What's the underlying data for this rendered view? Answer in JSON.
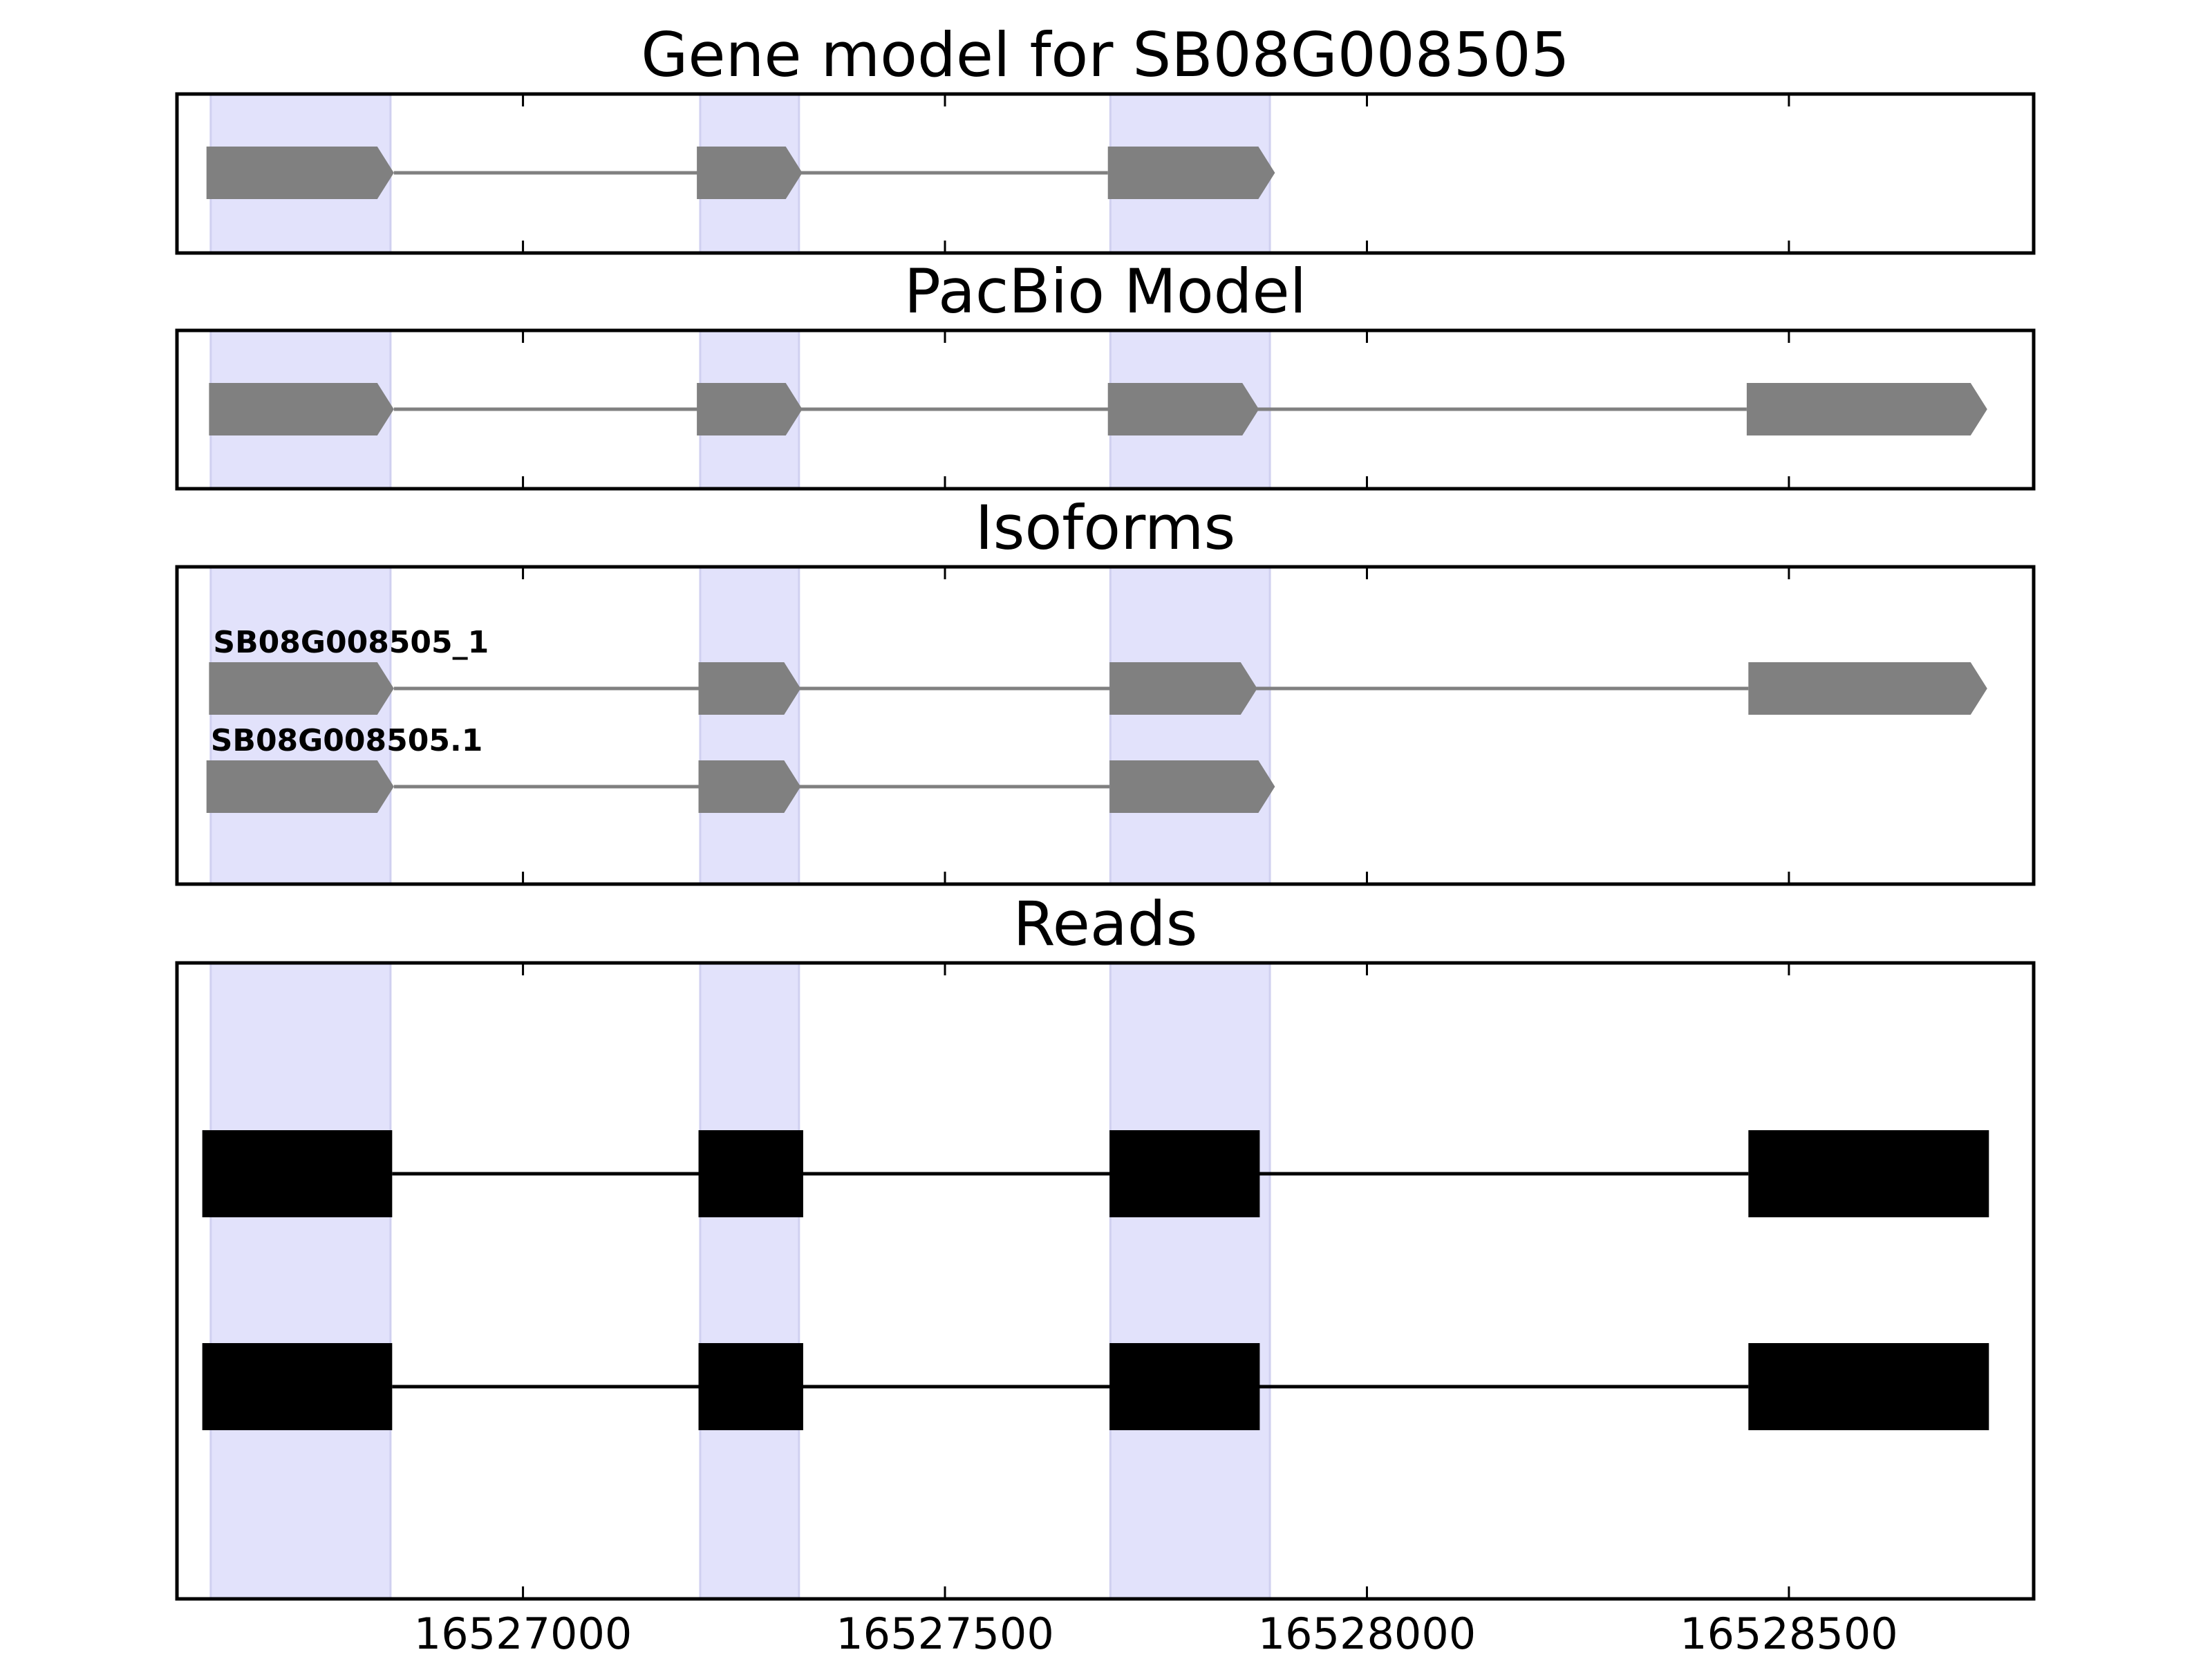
{
  "colors": {
    "shade": "#e2e2fb",
    "shade_edge": "#d0d0f0",
    "model": "#808080",
    "read": "#000000",
    "frame": "#000000"
  },
  "chart_data": {
    "type": "gene-structure",
    "x_axis": {
      "xlim": [
        16526590,
        16528790
      ],
      "ticks": [
        16527000,
        16527500,
        16528000,
        16528500
      ],
      "tick_labels": [
        "16527000",
        "16527500",
        "16528000",
        "16528500"
      ]
    },
    "shaded_exons": [
      [
        16526630,
        16526843
      ],
      [
        16527210,
        16527327
      ],
      [
        16527696,
        16527885
      ]
    ],
    "panels": [
      {
        "id": "gene-model",
        "title": "Gene model for SB08G008505",
        "style": "arrow",
        "rows": [
          {
            "label": "",
            "exons": [
              [
                16526625,
                16526847
              ],
              [
                16527206,
                16527331
              ],
              [
                16527693,
                16527891
              ]
            ]
          }
        ]
      },
      {
        "id": "pacbio-model",
        "title": "PacBio Model",
        "style": "arrow",
        "rows": [
          {
            "label": "",
            "exons": [
              [
                16526628,
                16526847
              ],
              [
                16527206,
                16527331
              ],
              [
                16527693,
                16527872
              ],
              [
                16528450,
                16528735
              ]
            ]
          }
        ]
      },
      {
        "id": "isoforms",
        "title": "Isoforms",
        "style": "arrow",
        "rows": [
          {
            "label": "SB08G008505_1",
            "exons": [
              [
                16526628,
                16526847
              ],
              [
                16527208,
                16527329
              ],
              [
                16527695,
                16527870
              ],
              [
                16528452,
                16528735
              ]
            ]
          },
          {
            "label": "SB08G008505.1",
            "exons": [
              [
                16526625,
                16526847
              ],
              [
                16527208,
                16527329
              ],
              [
                16527695,
                16527891
              ]
            ]
          }
        ]
      },
      {
        "id": "reads",
        "title": "Reads",
        "style": "block",
        "rows": [
          {
            "label": "",
            "exons": [
              [
                16526620,
                16526845
              ],
              [
                16527208,
                16527332
              ],
              [
                16527695,
                16527873
              ],
              [
                16528452,
                16528737
              ]
            ]
          },
          {
            "label": "",
            "exons": [
              [
                16526620,
                16526845
              ],
              [
                16527208,
                16527332
              ],
              [
                16527695,
                16527873
              ],
              [
                16528452,
                16528737
              ]
            ]
          }
        ]
      }
    ]
  }
}
